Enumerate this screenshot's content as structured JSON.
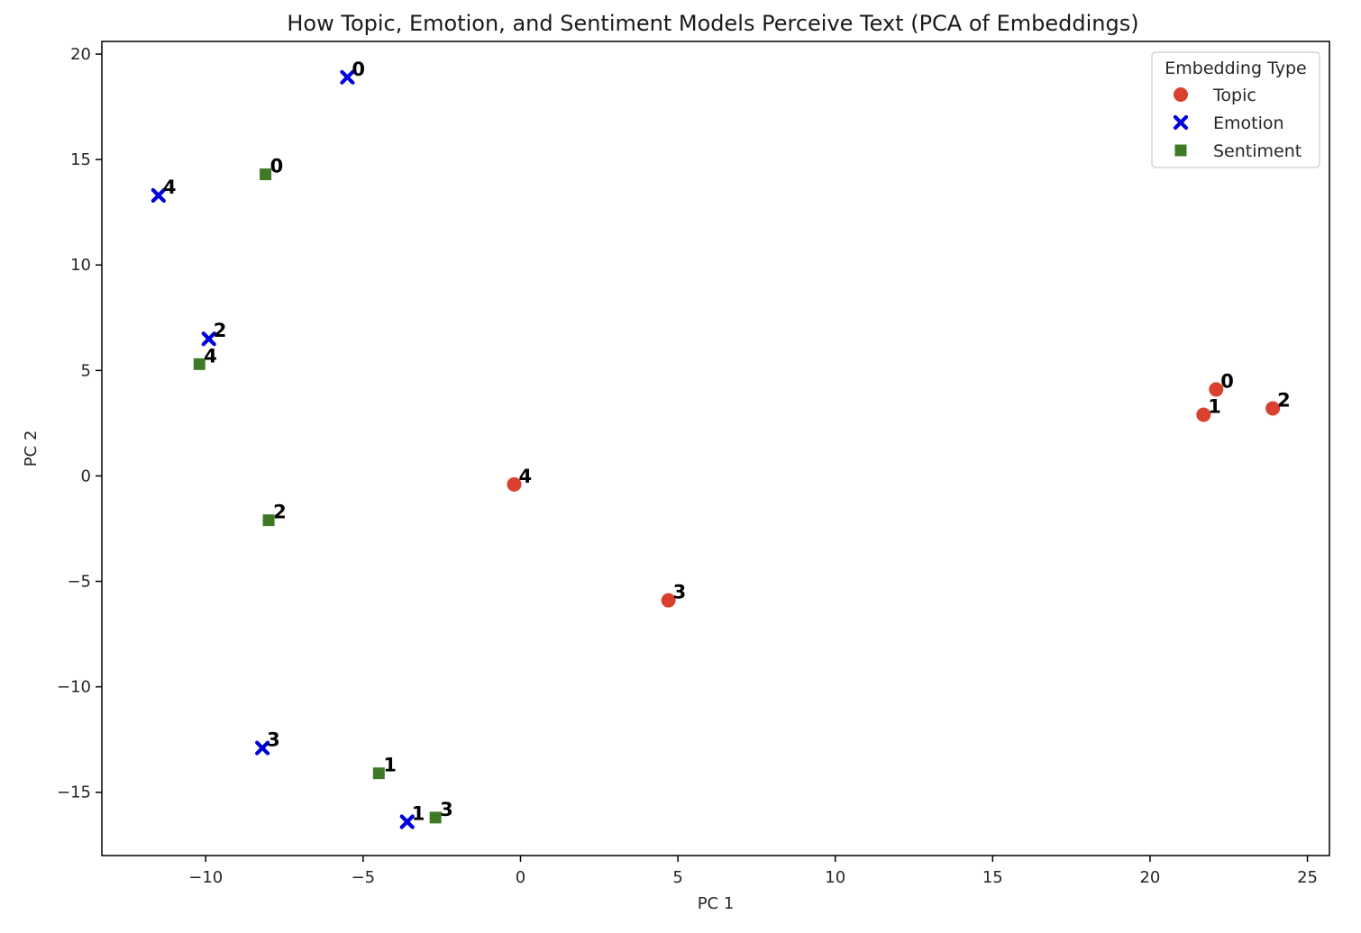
{
  "chart_data": {
    "type": "scatter",
    "title": "How Topic, Emotion, and Sentiment Models Perceive Text (PCA of Embeddings)",
    "xlabel": "PC 1",
    "ylabel": "PC 2",
    "xlim": [
      -13.3,
      25.7
    ],
    "ylim": [
      -18.0,
      20.6
    ],
    "xticks": [
      -10,
      -5,
      0,
      5,
      10,
      15,
      20,
      25
    ],
    "yticks": [
      -15,
      -10,
      -5,
      0,
      5,
      10,
      15,
      20
    ],
    "xtick_labels": [
      "−10",
      "−5",
      "0",
      "5",
      "10",
      "15",
      "20",
      "25"
    ],
    "ytick_labels": [
      "−15",
      "−10",
      "−5",
      "0",
      "5",
      "10",
      "15",
      "20"
    ],
    "grid": false,
    "legend": {
      "title": "Embedding Type",
      "placement": "top-right"
    },
    "series": [
      {
        "name": "Topic",
        "marker": "circle",
        "color": "#d9402e",
        "points": [
          {
            "label": "0",
            "x": 22.1,
            "y": 4.1
          },
          {
            "label": "1",
            "x": 21.7,
            "y": 2.9
          },
          {
            "label": "2",
            "x": 23.9,
            "y": 3.2
          },
          {
            "label": "3",
            "x": 4.7,
            "y": -5.9
          },
          {
            "label": "4",
            "x": -0.2,
            "y": -0.4
          }
        ]
      },
      {
        "name": "Emotion",
        "marker": "x",
        "color": "#0000dd",
        "points": [
          {
            "label": "0",
            "x": -5.5,
            "y": 18.9
          },
          {
            "label": "1",
            "x": -3.6,
            "y": -16.4
          },
          {
            "label": "2",
            "x": -9.9,
            "y": 6.5
          },
          {
            "label": "3",
            "x": -8.2,
            "y": -12.9
          },
          {
            "label": "4",
            "x": -11.5,
            "y": 13.3
          }
        ]
      },
      {
        "name": "Sentiment",
        "marker": "square",
        "color": "#3e7a26",
        "points": [
          {
            "label": "0",
            "x": -8.1,
            "y": 14.3
          },
          {
            "label": "1",
            "x": -4.5,
            "y": -14.1
          },
          {
            "label": "2",
            "x": -8.0,
            "y": -2.1
          },
          {
            "label": "3",
            "x": -2.7,
            "y": -16.2
          },
          {
            "label": "4",
            "x": -10.2,
            "y": 5.3
          }
        ]
      }
    ]
  }
}
